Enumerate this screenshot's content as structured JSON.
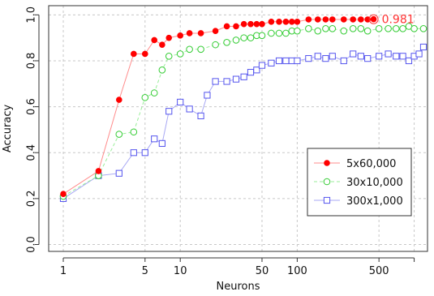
{
  "chart_data": {
    "type": "line",
    "xlabel": "Neurons",
    "ylabel": "Accuracy",
    "x_scale": "log",
    "xlim": [
      0.75,
      1300
    ],
    "ylim": [
      -0.03,
      1.04
    ],
    "x_ticks": [
      1,
      5,
      10,
      50,
      100,
      500,
      1000
    ],
    "x_tick_labels": [
      "1",
      "5",
      "10",
      "50",
      "100",
      "500",
      ""
    ],
    "y_ticks": [
      0.0,
      0.2,
      0.4,
      0.6,
      0.8,
      1.0
    ],
    "y_tick_labels": [
      "0.0",
      "0.2",
      "0.4",
      "0.6",
      "0.8",
      "1.0"
    ],
    "grid": true,
    "legend_position": "center-right",
    "annotations": [
      {
        "text": "0.981",
        "x": 450,
        "y": 0.981,
        "color": "#ff3333"
      }
    ],
    "series": [
      {
        "name": "5x60,000",
        "color": "#ff0000",
        "line_color": "#ff8c8c",
        "marker": "filled-circle",
        "line_style": "solid",
        "x": [
          1,
          2,
          3,
          4,
          5,
          6,
          7,
          8,
          10,
          12,
          15,
          20,
          25,
          30,
          35,
          40,
          45,
          50,
          60,
          70,
          80,
          90,
          100,
          125,
          150,
          175,
          200,
          250,
          300,
          350,
          400,
          450
        ],
        "y": [
          0.22,
          0.32,
          0.63,
          0.83,
          0.83,
          0.89,
          0.87,
          0.9,
          0.91,
          0.92,
          0.92,
          0.93,
          0.95,
          0.95,
          0.96,
          0.96,
          0.96,
          0.96,
          0.97,
          0.97,
          0.97,
          0.97,
          0.97,
          0.98,
          0.98,
          0.98,
          0.98,
          0.98,
          0.98,
          0.98,
          0.98,
          0.981
        ]
      },
      {
        "name": "30x10,000",
        "color": "#33cc33",
        "line_color": "#99ee99",
        "marker": "open-circle",
        "line_style": "dashed",
        "x": [
          1,
          2,
          3,
          4,
          5,
          6,
          7,
          8,
          10,
          12,
          15,
          20,
          25,
          30,
          35,
          40,
          45,
          50,
          60,
          70,
          80,
          90,
          100,
          125,
          150,
          175,
          200,
          250,
          300,
          350,
          400,
          500,
          600,
          700,
          800,
          900,
          1000,
          1200
        ],
        "y": [
          0.21,
          0.3,
          0.48,
          0.49,
          0.64,
          0.66,
          0.76,
          0.82,
          0.83,
          0.85,
          0.85,
          0.87,
          0.88,
          0.89,
          0.9,
          0.9,
          0.91,
          0.91,
          0.92,
          0.92,
          0.92,
          0.93,
          0.93,
          0.94,
          0.93,
          0.94,
          0.94,
          0.93,
          0.94,
          0.94,
          0.93,
          0.94,
          0.94,
          0.94,
          0.94,
          0.95,
          0.94,
          0.94
        ]
      },
      {
        "name": "300x1,000",
        "color": "#5555ee",
        "line_color": "#a8a8f4",
        "marker": "open-square",
        "line_style": "solid",
        "x": [
          1,
          2,
          3,
          4,
          5,
          6,
          7,
          8,
          10,
          12,
          15,
          17,
          20,
          25,
          30,
          35,
          40,
          45,
          50,
          60,
          70,
          80,
          90,
          100,
          125,
          150,
          175,
          200,
          250,
          300,
          350,
          400,
          500,
          600,
          700,
          800,
          900,
          1000,
          1100,
          1200
        ],
        "y": [
          0.2,
          0.3,
          0.31,
          0.4,
          0.4,
          0.46,
          0.44,
          0.58,
          0.62,
          0.59,
          0.56,
          0.65,
          0.71,
          0.71,
          0.72,
          0.73,
          0.75,
          0.76,
          0.78,
          0.79,
          0.8,
          0.8,
          0.8,
          0.8,
          0.81,
          0.82,
          0.81,
          0.82,
          0.8,
          0.83,
          0.82,
          0.81,
          0.82,
          0.83,
          0.82,
          0.82,
          0.8,
          0.82,
          0.83,
          0.86
        ]
      }
    ]
  }
}
